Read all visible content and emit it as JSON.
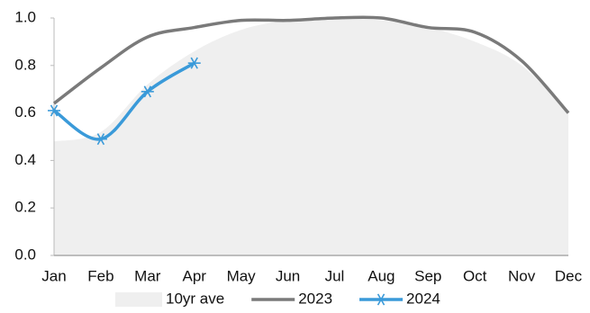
{
  "chart_data": {
    "type": "line",
    "categories": [
      "Jan",
      "Feb",
      "Mar",
      "Apr",
      "May",
      "Jun",
      "Jul",
      "Aug",
      "Sep",
      "Oct",
      "Nov",
      "Dec"
    ],
    "series": [
      {
        "name": "10yr ave",
        "style": "area",
        "color": "#efefef",
        "values": [
          0.48,
          0.52,
          0.72,
          0.86,
          0.95,
          0.99,
          1.0,
          0.99,
          0.96,
          0.9,
          0.8,
          0.6
        ]
      },
      {
        "name": "2023",
        "style": "line",
        "color": "#7a7a7a",
        "values": [
          0.64,
          0.79,
          0.92,
          0.96,
          0.99,
          0.99,
          1.0,
          1.0,
          0.96,
          0.94,
          0.82,
          0.6
        ]
      },
      {
        "name": "2024",
        "style": "line",
        "marker": "asterisk",
        "color": "#3a9ad9",
        "values": [
          0.61,
          0.49,
          0.69,
          0.81,
          null,
          null,
          null,
          null,
          null,
          null,
          null,
          null
        ]
      }
    ],
    "ylim": [
      0,
      1
    ],
    "yticks": [
      {
        "value": 0,
        "label": "0.0"
      },
      0.2,
      0.4,
      0.6,
      0.8,
      {
        "value": 1,
        "label": "1.0"
      }
    ],
    "grid": false,
    "legend": "bottom"
  }
}
